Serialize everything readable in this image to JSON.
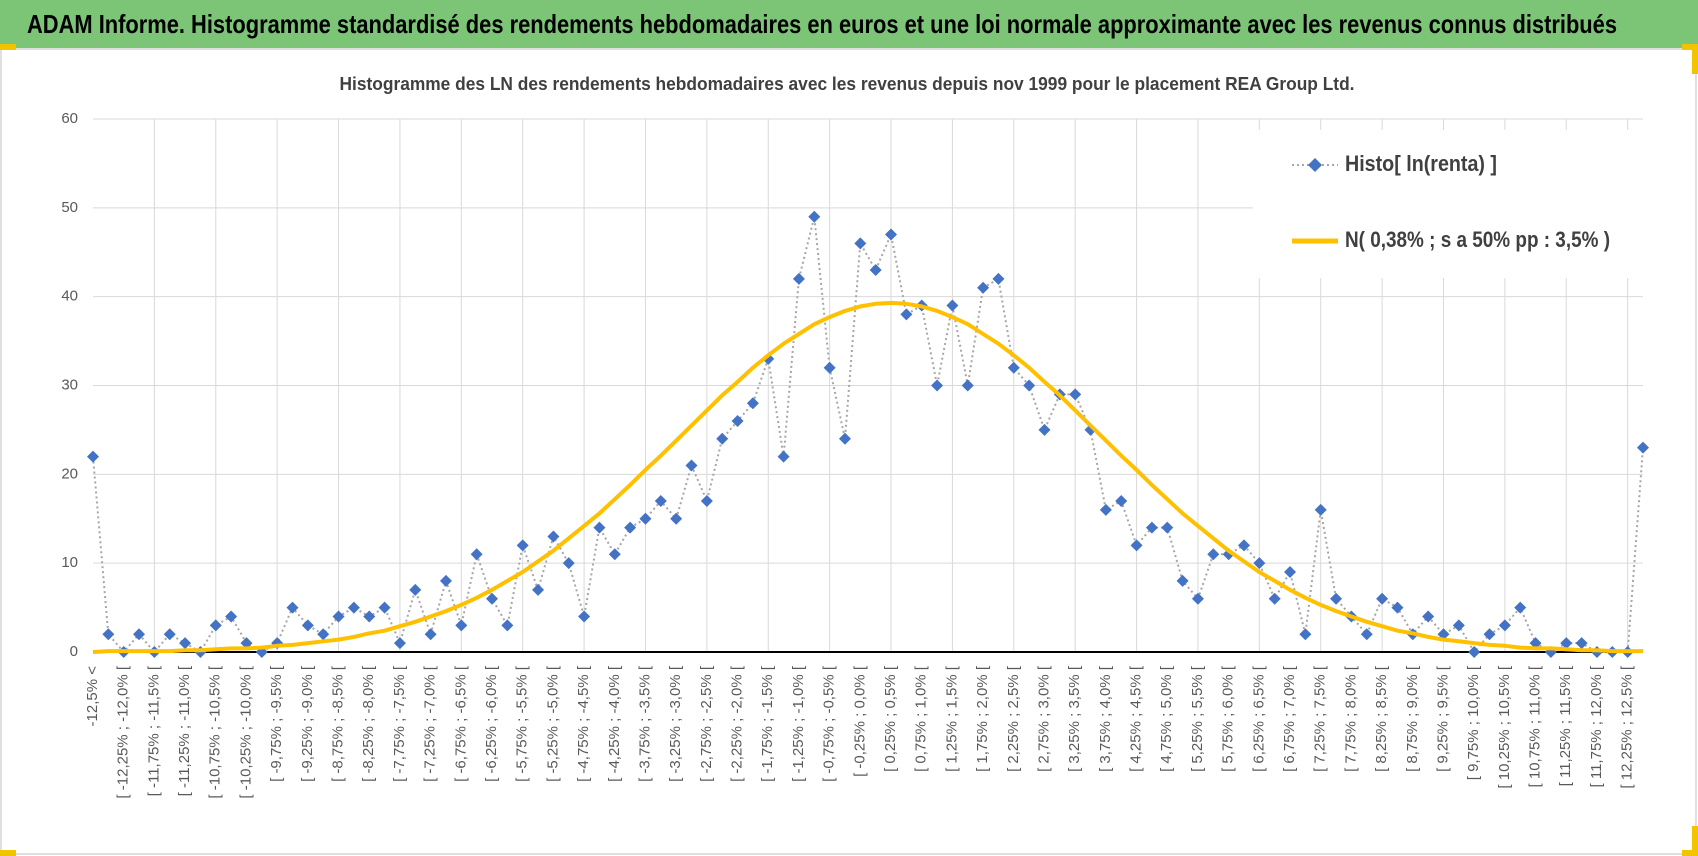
{
  "header": {
    "title": "ADAM Informe. Histogramme standardisé des rendements hebdomadaires en euros et une loi normale approximante avec les revenus connus distribués"
  },
  "chart_data": {
    "type": "line",
    "title": "Histogramme des LN des rendements hebdomadaires avec les revenus depuis nov 1999 pour le placement REA Group Ltd.",
    "categories": [
      "-12,5% <",
      null,
      "[ -12,25% ; -12,0% [",
      null,
      "[ -11,75% ; -11,5% [",
      null,
      "[ -11,25% ; -11,0% [",
      null,
      "[ -10,75% ; -10,5% [",
      null,
      "[ -10,25% ; -10,0% [",
      null,
      "[ -9,75% ; -9,5% [",
      null,
      "[ -9,25% ; -9,0% [",
      null,
      "[ -8,75% ; -8,5% [",
      null,
      "[ -8,25% ; -8,0% [",
      null,
      "[ -7,75% ; -7,5% [",
      null,
      "[ -7,25% ; -7,0% [",
      null,
      "[ -6,75% ; -6,5% [",
      null,
      "[ -6,25% ; -6,0% [",
      null,
      "[ -5,75% ; -5,5% [",
      null,
      "[ -5,25% ; -5,0% [",
      null,
      "[ -4,75% ; -4,5% [",
      null,
      "[ -4,25% ; -4,0% [",
      null,
      "[ -3,75% ; -3,5% [",
      null,
      "[ -3,25% ; -3,0% [",
      null,
      "[ -2,75% ; -2,5% [",
      null,
      "[ -2,25% ; -2,0% [",
      null,
      "[ -1,75% ; -1,5% [",
      null,
      "[ -1,25% ; -1,0% [",
      null,
      "[ -0,75% ; -0,5% [",
      null,
      "[ -0,25% ; 0,0% [",
      null,
      "[ 0,25% ; 0,5% [",
      null,
      "[ 0,75% ; 1,0% [",
      null,
      "[ 1,25% ; 1,5% [",
      null,
      "[ 1,75% ; 2,0% [",
      null,
      "[ 2,25% ; 2,5% [",
      null,
      "[ 2,75% ; 3,0% [",
      null,
      "[ 3,25% ; 3,5% [",
      null,
      "[ 3,75% ; 4,0% [",
      null,
      "[ 4,25% ; 4,5% [",
      null,
      "[ 4,75% ; 5,0% [",
      null,
      "[ 5,25% ; 5,5% [",
      null,
      "[ 5,75% ; 6,0% [",
      null,
      "[ 6,25% ; 6,5% [",
      null,
      "[ 6,75% ; 7,0% [",
      null,
      "[ 7,25% ; 7,5% [",
      null,
      "[ 7,75% ; 8,0% [",
      null,
      "[ 8,25% ; 8,5% [",
      null,
      "[ 8,75% ; 9,0% [",
      null,
      "[ 9,25% ; 9,5% [",
      null,
      "[ 9,75% ; 10,0% [",
      null,
      "[ 10,25% ; 10,5% [",
      null,
      "[ 10,75% ; 11,0% [",
      null,
      "[ 11,25% ; 11,5% [",
      null,
      "[ 11,75% ; 12,0% [",
      null,
      "[ 12,25% ; 12,5% [",
      null
    ],
    "series": [
      {
        "name": "Histo[ ln(renta) ]",
        "color": "#4472c4",
        "line_color": "#a6a6a6",
        "values": [
          22,
          2,
          0,
          2,
          0,
          2,
          1,
          0,
          3,
          4,
          1,
          0,
          1,
          5,
          3,
          2,
          4,
          5,
          4,
          5,
          1,
          7,
          2,
          8,
          3,
          11,
          6,
          3,
          12,
          7,
          13,
          10,
          4,
          14,
          11,
          14,
          15,
          17,
          15,
          21,
          17,
          24,
          26,
          28,
          33,
          22,
          42,
          49,
          32,
          24,
          46,
          43,
          47,
          38,
          39,
          30,
          39,
          30,
          41,
          42,
          32,
          30,
          25,
          29,
          29,
          25,
          16,
          17,
          12,
          14,
          14,
          8,
          6,
          11,
          11,
          12,
          10,
          6,
          9,
          2,
          16,
          6,
          4,
          2,
          6,
          5,
          2,
          4,
          2,
          3,
          0,
          2,
          3,
          5,
          1,
          0,
          1,
          1,
          0,
          0,
          0,
          23
        ]
      },
      {
        "name": "N( 0,38% ; s a 50% pp : 3,5% )",
        "color": "#ffc000",
        "values": [
          0,
          0.1,
          0.1,
          0.1,
          0.1,
          0.1,
          0.2,
          0.2,
          0.3,
          0.4,
          0.4,
          0.5,
          0.7,
          0.8,
          1.0,
          1.2,
          1.4,
          1.7,
          2.1,
          2.4,
          2.9,
          3.4,
          4.0,
          4.6,
          5.3,
          6.1,
          7.0,
          8.0,
          9.0,
          10.2,
          11.4,
          12.8,
          14.2,
          15.6,
          17.2,
          18.8,
          20.5,
          22.1,
          23.8,
          25.5,
          27.2,
          28.9,
          30.4,
          32.0,
          33.4,
          34.7,
          35.8,
          36.9,
          37.7,
          38.4,
          38.9,
          39.2,
          39.3,
          39.2,
          38.9,
          38.4,
          37.7,
          36.9,
          35.8,
          34.7,
          33.4,
          32.0,
          30.4,
          28.9,
          27.2,
          25.5,
          23.8,
          22.1,
          20.5,
          18.8,
          17.2,
          15.6,
          14.2,
          12.8,
          11.4,
          10.2,
          9.0,
          8.0,
          7.0,
          6.1,
          5.3,
          4.6,
          4.0,
          3.4,
          2.9,
          2.4,
          2.1,
          1.7,
          1.4,
          1.2,
          1.0,
          0.8,
          0.7,
          0.5,
          0.4,
          0.4,
          0.3,
          0.2,
          0.2,
          0.1,
          0.1,
          0.1
        ]
      }
    ],
    "ylim": [
      0,
      60
    ],
    "yticks": [
      0,
      10,
      20,
      30,
      40,
      50,
      60
    ],
    "grid": true,
    "legend": "upper right"
  }
}
